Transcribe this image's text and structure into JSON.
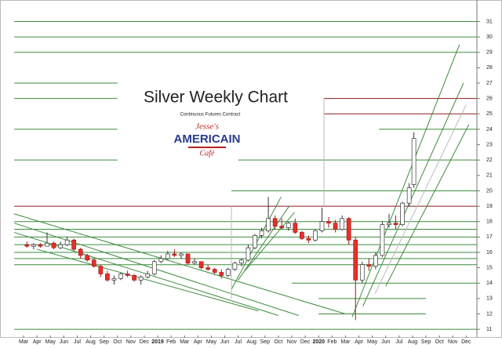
{
  "chart_data": {
    "type": "candlestick",
    "title": "Silver Weekly Chart",
    "subtitle": "Continuous Futures Contract",
    "logo": [
      "Jesse's",
      "AMERICAIN",
      "Café"
    ],
    "xlim": [
      -0.88,
      33.8
    ],
    "xticks": [
      {
        "value": 0,
        "label": "Mar"
      },
      {
        "value": 1,
        "label": "Apr"
      },
      {
        "value": 2,
        "label": "May"
      },
      {
        "value": 3,
        "label": "Jun"
      },
      {
        "value": 4,
        "label": "Jul"
      },
      {
        "value": 5,
        "label": "Aug"
      },
      {
        "value": 6,
        "label": "Sep"
      },
      {
        "value": 7,
        "label": "Oct"
      },
      {
        "value": 8,
        "label": "Nov"
      },
      {
        "value": 9,
        "label": "Dec"
      },
      {
        "value": 10,
        "label": "2019"
      },
      {
        "value": 11,
        "label": "Feb"
      },
      {
        "value": 12,
        "label": "Mar"
      },
      {
        "value": 13,
        "label": "Apr"
      },
      {
        "value": 14,
        "label": "May"
      },
      {
        "value": 15,
        "label": "Jun"
      },
      {
        "value": 16,
        "label": "Jul"
      },
      {
        "value": 17,
        "label": "Aug"
      },
      {
        "value": 18,
        "label": "Sep"
      },
      {
        "value": 19,
        "label": "Oct"
      },
      {
        "value": 20,
        "label": "Nov"
      },
      {
        "value": 21,
        "label": "Dec"
      },
      {
        "value": 22,
        "label": "2020"
      },
      {
        "value": 23,
        "label": "Feb"
      },
      {
        "value": 24,
        "label": "Mar"
      },
      {
        "value": 25,
        "label": "Apr"
      },
      {
        "value": 26,
        "label": "May"
      },
      {
        "value": 27,
        "label": "Jun"
      },
      {
        "value": 28,
        "label": "Jul"
      },
      {
        "value": 29,
        "label": "Aug"
      },
      {
        "value": 30,
        "label": "Sep"
      },
      {
        "value": 31,
        "label": "Oct"
      },
      {
        "value": 32,
        "label": "Nov"
      },
      {
        "value": 33,
        "label": "Dec"
      }
    ],
    "ylim": [
      10.6,
      32.4
    ],
    "yticks": [
      11,
      12,
      13,
      14,
      15,
      16,
      17,
      18,
      19,
      20,
      21,
      22,
      23,
      24,
      25,
      26,
      27,
      28,
      29,
      30,
      31
    ],
    "up_color": "#ffffff",
    "down_color": "#e8302a",
    "candles": {
      "x": [
        0.25,
        0.75,
        1.25,
        1.75,
        2.25,
        2.75,
        3.25,
        3.75,
        4.25,
        4.75,
        5.25,
        5.75,
        6.25,
        6.75,
        7.25,
        7.75,
        8.25,
        8.75,
        9.25,
        9.75,
        10.25,
        10.75,
        11.25,
        11.75,
        12.25,
        12.75,
        13.25,
        13.75,
        14.25,
        14.75,
        15.25,
        15.75,
        16.25,
        16.75,
        17.25,
        17.75,
        18.25,
        18.75,
        19.25,
        19.75,
        20.25,
        20.75,
        21.25,
        21.75,
        22.25,
        22.75,
        23.25,
        23.75,
        24.25,
        24.75,
        25.25,
        25.75,
        26.25,
        26.75,
        27.25,
        27.75,
        28.25,
        28.75,
        29.1
      ],
      "open": [
        16.5,
        16.4,
        16.5,
        16.4,
        16.6,
        16.3,
        16.5,
        16.8,
        16.2,
        15.8,
        15.5,
        15.1,
        14.6,
        14.2,
        14.3,
        14.6,
        14.5,
        14.2,
        14.4,
        14.6,
        15.4,
        15.6,
        15.9,
        15.8,
        15.9,
        15.3,
        15.4,
        15.0,
        14.9,
        14.7,
        14.5,
        14.9,
        15.3,
        15.5,
        16.3,
        17.1,
        17.4,
        18.2,
        17.7,
        17.6,
        17.9,
        17.3,
        16.9,
        16.8,
        17.4,
        18.0,
        17.9,
        17.5,
        18.2,
        16.8,
        14.2,
        15.2,
        15.1,
        15.8,
        17.8,
        17.9,
        17.8,
        19.2,
        20.4
      ],
      "high": [
        16.7,
        16.6,
        16.6,
        17.3,
        16.7,
        16.7,
        17.0,
        16.9,
        16.3,
        15.9,
        15.6,
        15.2,
        14.8,
        14.5,
        14.7,
        14.8,
        14.6,
        14.5,
        14.8,
        15.5,
        15.8,
        16.1,
        16.2,
        16.0,
        15.9,
        15.6,
        15.4,
        15.2,
        15.0,
        14.9,
        15.0,
        15.4,
        15.6,
        16.5,
        17.2,
        17.6,
        19.6,
        18.4,
        18.2,
        18.0,
        18.2,
        17.4,
        17.1,
        17.5,
        18.9,
        18.3,
        18.1,
        18.4,
        18.3,
        17.0,
        15.4,
        15.6,
        16.0,
        18.0,
        18.5,
        18.4,
        19.3,
        20.5,
        23.8
      ],
      "low": [
        16.3,
        16.2,
        16.3,
        16.4,
        16.2,
        16.2,
        16.4,
        16.1,
        15.6,
        15.4,
        15.0,
        14.4,
        14.1,
        13.9,
        14.2,
        14.4,
        14.1,
        13.9,
        14.3,
        14.5,
        15.3,
        15.5,
        15.7,
        15.6,
        15.2,
        15.2,
        14.9,
        14.8,
        14.6,
        14.3,
        14.4,
        14.8,
        15.1,
        15.4,
        16.2,
        16.9,
        17.3,
        17.5,
        17.5,
        17.4,
        17.2,
        16.8,
        16.6,
        16.7,
        17.3,
        17.6,
        17.3,
        17.4,
        16.5,
        11.6,
        14.0,
        14.8,
        14.9,
        15.7,
        17.6,
        17.5,
        17.7,
        19.0,
        20.2
      ],
      "close": [
        16.4,
        16.5,
        16.4,
        16.6,
        16.3,
        16.5,
        16.8,
        16.2,
        15.8,
        15.5,
        15.1,
        14.6,
        14.2,
        14.3,
        14.6,
        14.5,
        14.2,
        14.4,
        14.6,
        15.4,
        15.6,
        15.9,
        15.8,
        15.9,
        15.3,
        15.4,
        15.0,
        14.9,
        14.7,
        14.5,
        14.9,
        15.3,
        15.5,
        16.3,
        17.1,
        17.4,
        18.2,
        17.7,
        17.6,
        17.9,
        17.3,
        16.9,
        16.8,
        17.4,
        18.0,
        17.9,
        17.5,
        18.2,
        16.8,
        14.2,
        15.2,
        15.1,
        15.8,
        17.8,
        17.9,
        17.8,
        19.2,
        20.2,
        23.4
      ]
    },
    "levels": [
      {
        "value": 31,
        "from": -0.7,
        "to": 33.8,
        "color": "#3c8c3c"
      },
      {
        "value": 30,
        "from": -0.7,
        "to": 33.8,
        "color": "#3c8c3c"
      },
      {
        "value": 29,
        "from": -0.7,
        "to": 33.8,
        "color": "#3c8c3c"
      },
      {
        "value": 27,
        "from": -0.7,
        "to": 7.0,
        "color": "#3c8c3c"
      },
      {
        "value": 26,
        "from": -0.7,
        "to": 7.0,
        "color": "#3c8c3c"
      },
      {
        "value": 24,
        "from": -0.7,
        "to": 7.0,
        "color": "#3c8c3c"
      },
      {
        "value": 24,
        "from": 26.5,
        "to": 33.8,
        "color": "#3c8c3c"
      },
      {
        "value": 22,
        "from": -0.7,
        "to": 7.0,
        "color": "#3c8c3c"
      },
      {
        "value": 22,
        "from": 16.0,
        "to": 33.8,
        "color": "#3c8c3c"
      },
      {
        "value": 20,
        "from": 15.5,
        "to": 33.8,
        "color": "#3c8c3c"
      },
      {
        "value": 26,
        "from": 22.4,
        "to": 33.8,
        "color": "#8b1a1a"
      },
      {
        "value": 25,
        "from": 22.4,
        "to": 33.8,
        "color": "#8b1a1a"
      },
      {
        "value": 19,
        "from": -0.7,
        "to": 33.8,
        "color": "#8b1a1a"
      },
      {
        "value": 18,
        "from": -0.7,
        "to": 33.8,
        "color": "#3c8c3c"
      },
      {
        "value": 17.5,
        "from": -0.7,
        "to": 33.8,
        "color": "#3c8c3c"
      },
      {
        "value": 17,
        "from": -0.7,
        "to": 33.8,
        "color": "#3c8c3c"
      },
      {
        "value": 16.5,
        "from": -0.7,
        "to": 33.8,
        "color": "#3c8c3c"
      },
      {
        "value": 16,
        "from": -0.7,
        "to": 33.8,
        "color": "#3c8c3c"
      },
      {
        "value": 15.6,
        "from": -0.7,
        "to": 33.8,
        "color": "#3c8c3c"
      },
      {
        "value": 15.2,
        "from": -0.7,
        "to": 33.8,
        "color": "#3c8c3c"
      },
      {
        "value": 14,
        "from": 20.0,
        "to": 33.8,
        "color": "#3c8c3c"
      },
      {
        "value": 13,
        "from": 22.0,
        "to": 30.0,
        "color": "#3c8c3c"
      },
      {
        "value": 12,
        "from": 22.0,
        "to": 30.0,
        "color": "#3c8c3c"
      },
      {
        "value": 11,
        "from": -0.7,
        "to": 33.8,
        "color": "#3c8c3c"
      }
    ],
    "trendlines": [
      {
        "from": [
          -0.7,
          18.5
        ],
        "to": [
          24.0,
          12.0
        ],
        "color": "#3c8c3c"
      },
      {
        "from": [
          -0.7,
          17.9
        ],
        "to": [
          20.5,
          11.9
        ],
        "color": "#3c8c3c"
      },
      {
        "from": [
          -0.7,
          17.3
        ],
        "to": [
          19.0,
          11.9
        ],
        "color": "#3c8c3c"
      },
      {
        "from": [
          1.0,
          16.2
        ],
        "to": [
          17.5,
          12.2
        ],
        "color": "#3c8c3c"
      },
      {
        "from": [
          15.5,
          13.6
        ],
        "to": [
          19.2,
          19.6
        ],
        "color": "#3c8c3c"
      },
      {
        "from": [
          16.0,
          14.2
        ],
        "to": [
          19.8,
          19.0
        ],
        "color": "#3c8c3c"
      },
      {
        "from": [
          16.5,
          14.8
        ],
        "to": [
          20.2,
          18.6
        ],
        "color": "#3c8c3c"
      },
      {
        "from": [
          24.5,
          11.8
        ],
        "to": [
          32.5,
          29.5
        ],
        "color": "#3c8c3c"
      },
      {
        "from": [
          25.3,
          12.5
        ],
        "to": [
          32.8,
          27.0
        ],
        "color": "#3c8c3c"
      },
      {
        "from": [
          26.2,
          13.3
        ],
        "to": [
          33.0,
          25.6
        ],
        "color": "#bbbbbb"
      },
      {
        "from": [
          27.0,
          13.8
        ],
        "to": [
          33.2,
          24.3
        ],
        "color": "#3c8c3c"
      },
      {
        "from": [
          22.4,
          19
        ],
        "to": [
          22.4,
          26
        ],
        "color": "#bbbbbb"
      },
      {
        "from": [
          15.5,
          19
        ],
        "to": [
          15.5,
          13
        ],
        "color": "#bbbbbb"
      }
    ]
  }
}
